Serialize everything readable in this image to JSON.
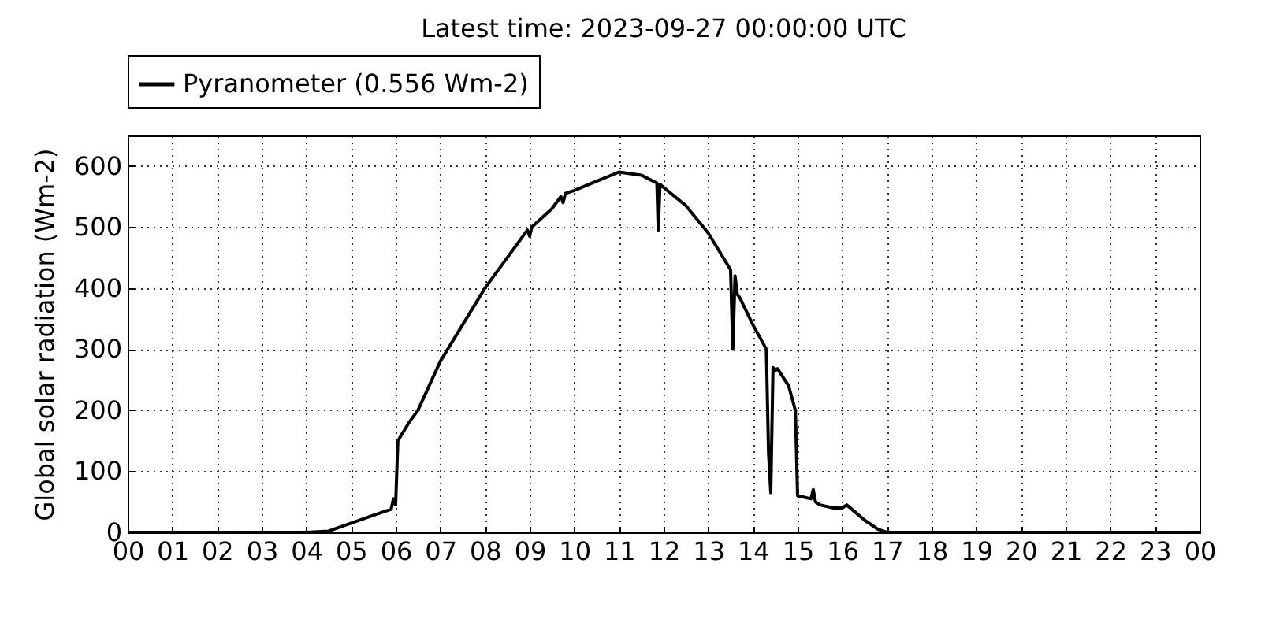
{
  "chart_data": {
    "type": "line",
    "title": "Latest time: 2023-09-27 00:00:00 UTC",
    "ylabel": "Global solar radiation (Wm-2)",
    "x": [
      0,
      4.0,
      4.5,
      5.0,
      5.5,
      5.9,
      5.95,
      6.0,
      6.05,
      6.3,
      6.5,
      7.0,
      7.5,
      8.0,
      8.5,
      8.95,
      9.0,
      9.05,
      9.5,
      9.7,
      9.75,
      9.8,
      10.0,
      10.5,
      11.0,
      11.5,
      11.85,
      11.88,
      11.92,
      12.0,
      12.5,
      13.0,
      13.5,
      13.55,
      13.6,
      13.65,
      13.7,
      14.0,
      14.3,
      14.35,
      14.4,
      14.45,
      14.5,
      14.55,
      14.8,
      14.95,
      15.0,
      15.3,
      15.35,
      15.4,
      15.5,
      15.8,
      16.0,
      16.1,
      16.5,
      16.8,
      17.0,
      24
    ],
    "series": [
      {
        "name": "Pyranometer (0.556 Wm-2)",
        "color": "#000000",
        "values": [
          0,
          0,
          2,
          15,
          28,
          38,
          55,
          45,
          150,
          180,
          200,
          280,
          340,
          400,
          450,
          495,
          485,
          500,
          530,
          550,
          540,
          555,
          560,
          575,
          590,
          585,
          572,
          495,
          570,
          565,
          535,
          490,
          430,
          300,
          420,
          390,
          385,
          340,
          300,
          130,
          65,
          270,
          265,
          268,
          240,
          200,
          60,
          55,
          70,
          50,
          45,
          40,
          40,
          45,
          20,
          5,
          0,
          0
        ]
      }
    ],
    "xlim": [
      0,
      24
    ],
    "xticks": [
      {
        "value": 0,
        "label": "00"
      },
      {
        "value": 1,
        "label": "01"
      },
      {
        "value": 2,
        "label": "02"
      },
      {
        "value": 3,
        "label": "03"
      },
      {
        "value": 4,
        "label": "04"
      },
      {
        "value": 5,
        "label": "05"
      },
      {
        "value": 6,
        "label": "06"
      },
      {
        "value": 7,
        "label": "07"
      },
      {
        "value": 8,
        "label": "08"
      },
      {
        "value": 9,
        "label": "09"
      },
      {
        "value": 10,
        "label": "10"
      },
      {
        "value": 11,
        "label": "11"
      },
      {
        "value": 12,
        "label": "12"
      },
      {
        "value": 13,
        "label": "13"
      },
      {
        "value": 14,
        "label": "14"
      },
      {
        "value": 15,
        "label": "15"
      },
      {
        "value": 16,
        "label": "16"
      },
      {
        "value": 17,
        "label": "17"
      },
      {
        "value": 18,
        "label": "18"
      },
      {
        "value": 19,
        "label": "19"
      },
      {
        "value": 20,
        "label": "20"
      },
      {
        "value": 21,
        "label": "21"
      },
      {
        "value": 22,
        "label": "22"
      },
      {
        "value": 23,
        "label": "23"
      },
      {
        "value": 24,
        "label": "00"
      }
    ],
    "ylim": [
      0,
      650
    ],
    "yticks": [
      0,
      100,
      200,
      300,
      400,
      500,
      600
    ],
    "grid": true,
    "legend": "top",
    "line_style": "solid",
    "marker": "none"
  }
}
